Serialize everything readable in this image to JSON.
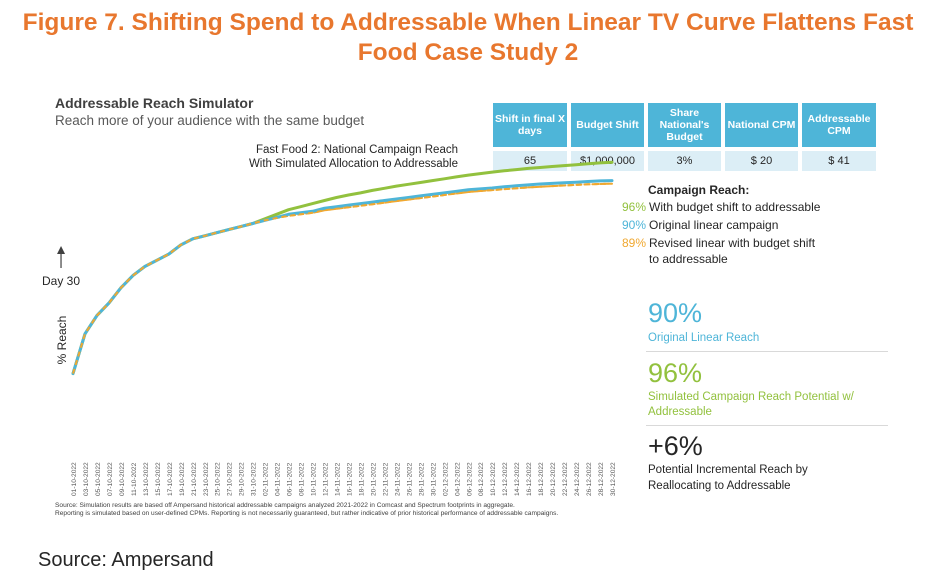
{
  "figure_title": "Figure 7. Shifting Spend to Addressable When Linear TV Curve Flattens Fast Food Case Study 2",
  "simulator": {
    "title": "Addressable Reach Simulator",
    "subtitle": "Reach more of your audience with the same budget",
    "campaign_line1": "Fast Food 2: National Campaign Reach",
    "campaign_line2": "With Simulated Allocation to Addressable"
  },
  "parameters": [
    {
      "header": "Shift in final X days",
      "value": "65"
    },
    {
      "header": "Budget Shift",
      "value": "$1,000,000"
    },
    {
      "header": "Share National's Budget",
      "value": "3%"
    },
    {
      "header": "National CPM",
      "value": "$ 20"
    },
    {
      "header": "Addressable CPM",
      "value": "$ 41"
    }
  ],
  "legend": {
    "title": "Campaign Reach:",
    "items": [
      {
        "pct": "96%",
        "label": "With budget  shift to addressable",
        "color": "#92c13e"
      },
      {
        "pct": "90%",
        "label": "Original linear campaign",
        "color": "#4eb5d8"
      },
      {
        "pct": "89%",
        "label": "Revised linear with budget shift",
        "label2": "to addressable",
        "color": "#f0a830"
      }
    ]
  },
  "stats": [
    {
      "value": "90%",
      "label": "Original Linear Reach",
      "color": "#4eb5d8"
    },
    {
      "value": "96%",
      "label": "Simulated  Campaign  Reach Potential w/",
      "label2": "Addressable",
      "color": "#92c13e"
    },
    {
      "value": "+6%",
      "label": "Potential Incremental Reach by",
      "label2": "Reallocating to Addressable",
      "color": "#262626"
    }
  ],
  "footnote": {
    "line1": "Source: Simulation results are based off Ampersand historical addressable campaigns analyzed 2021-2022 in Comcast and Spectrum footprints in aggregate.",
    "line2": "Reporting  is simulated based on user-defined  CPMs. Reporting is not necessarily guaranteed, but rather indicative of prior historical performance of addressable campaigns."
  },
  "source": "Source: Ampersand",
  "chart_data": {
    "type": "line",
    "ylabel": "% Reach",
    "xlabel": "",
    "annotation": "Day 30",
    "annotation_x": "03-11-2022",
    "x": [
      "01-10-2022",
      "03-10-2022",
      "05-10-2022",
      "07-10-2022",
      "09-10-2022",
      "11-10-2022",
      "13-10-2022",
      "15-10-2022",
      "17-10-2022",
      "19-10-2022",
      "21-10-2022",
      "23-10-2022",
      "25-10-2022",
      "27-10-2022",
      "29-10-2022",
      "31-10-2022",
      "02-11-2022",
      "04-11-2022",
      "06-11-2022",
      "08-11-2022",
      "10-11-2022",
      "12-11-2022",
      "14-11-2022",
      "16-11-2022",
      "18-11-2022",
      "20-11-2022",
      "22-11-2022",
      "24-11-2022",
      "26-11-2022",
      "28-11-2022",
      "30-11-2022",
      "02-12-2022",
      "04-12-2022",
      "06-12-2022",
      "08-12-2022",
      "10-12-2022",
      "12-12-2022",
      "14-12-2022",
      "16-12-2022",
      "18-12-2022",
      "20-12-2022",
      "22-12-2022",
      "24-12-2022",
      "26-12-2022",
      "28-12-2022",
      "30-12-2022"
    ],
    "ylim": [
      20,
      100
    ],
    "series": [
      {
        "name": "Original linear campaign",
        "color": "#4eb5d8",
        "values": [
          27,
          40,
          46,
          50,
          55,
          59,
          62,
          64,
          66,
          69,
          71,
          72,
          73,
          74,
          75,
          76,
          77,
          78,
          79,
          79.5,
          80,
          81,
          81.5,
          82,
          82.5,
          83,
          83.5,
          84,
          84.5,
          85,
          85.5,
          86,
          86.5,
          87,
          87.3,
          87.6,
          88,
          88.3,
          88.6,
          88.9,
          89.1,
          89.3,
          89.5,
          89.7,
          89.9,
          90
        ]
      },
      {
        "name": "Revised linear with budget shift to addressable",
        "color": "#f0a830",
        "values": [
          27,
          40,
          46,
          50,
          55,
          59,
          62,
          64,
          66,
          69,
          71,
          72,
          73,
          74,
          75,
          76,
          77,
          77.8,
          78.5,
          79,
          79.5,
          80.3,
          80.8,
          81.3,
          81.8,
          82.3,
          82.8,
          83.3,
          83.8,
          84.3,
          84.8,
          85.3,
          85.8,
          86.3,
          86.6,
          86.9,
          87.2,
          87.5,
          87.8,
          88,
          88.2,
          88.4,
          88.6,
          88.8,
          88.9,
          89
        ]
      },
      {
        "name": "With budget shift to addressable",
        "color": "#92c13e",
        "values": [
          27,
          40,
          46,
          50,
          55,
          59,
          62,
          64,
          66,
          69,
          71,
          72,
          73,
          74,
          75,
          76,
          77.5,
          79,
          80.5,
          81.5,
          82.5,
          83.5,
          84.5,
          85.3,
          86,
          86.8,
          87.5,
          88.2,
          88.8,
          89.4,
          90,
          90.6,
          91.2,
          91.8,
          92.3,
          92.8,
          93.2,
          93.6,
          94,
          94.3,
          94.6,
          94.9,
          95.2,
          95.5,
          95.8,
          96
        ]
      }
    ]
  }
}
